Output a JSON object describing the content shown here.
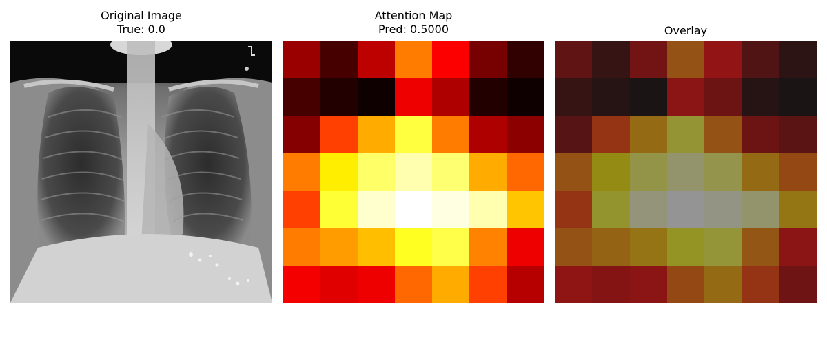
{
  "panels": [
    {
      "title_line1": "Original Image",
      "title_line2": "True: 0.0"
    },
    {
      "title_line1": "Attention Map",
      "title_line2": "Pred: 0.5000"
    },
    {
      "title_line1": "Overlay",
      "title_line2": ""
    }
  ],
  "chart_data": {
    "type": "heatmap",
    "rows": 7,
    "cols": 7,
    "colormap": "hot",
    "overlay_alpha": 0.5,
    "values": [
      [
        0.22,
        0.1,
        0.27,
        0.55,
        0.36,
        0.17,
        0.07
      ],
      [
        0.1,
        0.05,
        0.02,
        0.34,
        0.25,
        0.05,
        0.02
      ],
      [
        0.19,
        0.46,
        0.62,
        0.81,
        0.55,
        0.25,
        0.2
      ],
      [
        0.55,
        0.72,
        0.85,
        0.92,
        0.86,
        0.62,
        0.52
      ],
      [
        0.46,
        0.8,
        0.95,
        1.0,
        0.97,
        0.92,
        0.66
      ],
      [
        0.55,
        0.6,
        0.65,
        0.78,
        0.82,
        0.56,
        0.34
      ],
      [
        0.35,
        0.32,
        0.34,
        0.52,
        0.62,
        0.46,
        0.26
      ]
    ]
  }
}
